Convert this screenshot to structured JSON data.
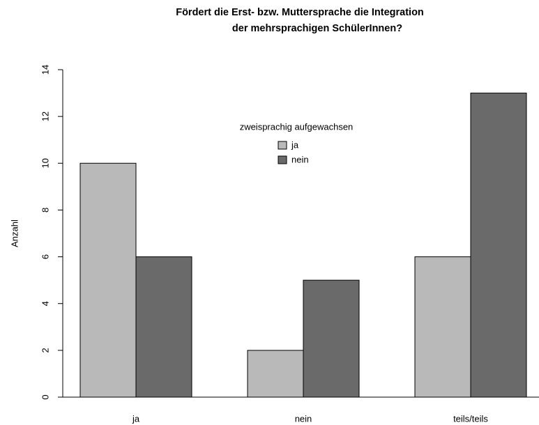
{
  "chart_data": {
    "type": "bar",
    "title": [
      "Fördert die Erst- bzw. Muttersprache die Integration",
      "der mehrsprachigen SchülerInnen?"
    ],
    "ylabel": "Anzahl",
    "categories": [
      "ja",
      "nein",
      "teils/teils"
    ],
    "series": [
      {
        "name": "ja",
        "color": "#b9b9b9",
        "values": [
          10,
          2,
          6
        ]
      },
      {
        "name": "nein",
        "color": "#6a6a6a",
        "values": [
          6,
          5,
          13
        ]
      }
    ],
    "legend_title": "zweisprachig aufgewachsen",
    "legend_position": "top",
    "ylim": [
      0,
      14
    ],
    "yticks": [
      0,
      2,
      4,
      6,
      8,
      10,
      12,
      14
    ],
    "grid": false
  }
}
